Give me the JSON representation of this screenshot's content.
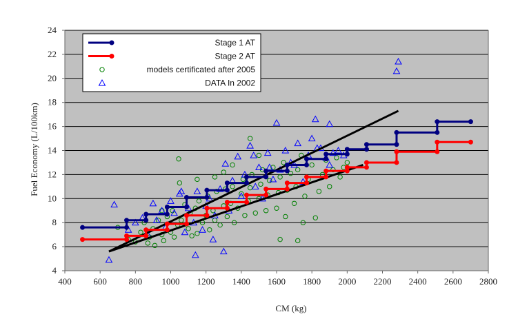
{
  "chart_data": {
    "type": "scatter",
    "xlabel": "CM (kg)",
    "ylabel": "Fuel Economy (L/100km)",
    "xlim": [
      400,
      2800
    ],
    "ylim": [
      4,
      24
    ],
    "x_ticks": [
      "400",
      "600",
      "800",
      "1000",
      "1200",
      "1400",
      "1600",
      "1800",
      "2000",
      "2200",
      "2400",
      "2600",
      "2800"
    ],
    "y_ticks": [
      "4",
      "6",
      "8",
      "10",
      "12",
      "14",
      "16",
      "18",
      "20",
      "22",
      "24"
    ],
    "grid": "horizontal",
    "background": "#c0c0c0",
    "legend_position": "top-left",
    "legend": [
      {
        "label": "Stage 1 AT",
        "color": "#000080",
        "marker": "line-dot"
      },
      {
        "label": "Stage 2 AT",
        "color": "#ff0000",
        "marker": "line-dot"
      },
      {
        "label": "models certificated after 2005",
        "color": "#008000",
        "marker": "circle"
      },
      {
        "label": "DATA In 2002",
        "color": "#0000ff",
        "marker": "triangle"
      }
    ],
    "series": [
      {
        "name": "Stage 1 AT",
        "type": "step",
        "color": "#000080",
        "x": [
          500,
          750,
          750,
          860,
          860,
          980,
          980,
          1090,
          1090,
          1205,
          1205,
          1320,
          1320,
          1430,
          1430,
          1540,
          1540,
          1660,
          1660,
          1770,
          1770,
          1880,
          1880,
          2000,
          2000,
          2110,
          2110,
          2280,
          2280,
          2510,
          2510,
          2700
        ],
        "y": [
          7.6,
          7.6,
          8.2,
          8.2,
          8.7,
          8.7,
          9.3,
          9.3,
          10.1,
          10.1,
          10.7,
          10.7,
          11.3,
          11.3,
          11.8,
          11.8,
          12.3,
          12.3,
          12.8,
          12.8,
          13.3,
          13.3,
          13.7,
          13.7,
          14.1,
          14.1,
          14.5,
          14.5,
          15.5,
          15.5,
          16.4,
          16.4
        ]
      },
      {
        "name": "Stage 2 AT",
        "type": "step",
        "color": "#ff0000",
        "x": [
          500,
          750,
          750,
          860,
          860,
          980,
          980,
          1090,
          1090,
          1205,
          1205,
          1320,
          1320,
          1430,
          1430,
          1540,
          1540,
          1660,
          1660,
          1770,
          1770,
          1880,
          1880,
          2000,
          2000,
          2110,
          2110,
          2280,
          2280,
          2510,
          2510,
          2700
        ],
        "y": [
          6.6,
          6.6,
          6.9,
          6.9,
          7.4,
          7.4,
          7.9,
          7.9,
          8.6,
          8.6,
          9.2,
          9.2,
          9.7,
          9.7,
          10.3,
          10.3,
          10.8,
          10.8,
          11.3,
          11.3,
          11.8,
          11.8,
          12.3,
          12.3,
          12.6,
          12.6,
          13.0,
          13.0,
          13.9,
          13.9,
          14.7,
          14.7
        ]
      },
      {
        "name": "trend upper",
        "type": "line",
        "color": "#000000",
        "x": [
          650,
          2290
        ],
        "y": [
          5.6,
          17.3
        ]
      },
      {
        "name": "trend lower",
        "type": "line",
        "color": "#000000",
        "x": [
          650,
          2090
        ],
        "y": [
          5.6,
          12.8
        ]
      },
      {
        "name": "models certificated after 2005",
        "type": "scatter",
        "marker": "circle",
        "color": "#008000",
        "x": [
          700,
          760,
          800,
          830,
          850,
          870,
          880,
          900,
          910,
          930,
          950,
          960,
          980,
          1000,
          1010,
          1020,
          1040,
          1050,
          1060,
          1080,
          1100,
          1110,
          1120,
          1140,
          1150,
          1160,
          1180,
          1200,
          1210,
          1220,
          1240,
          1250,
          1260,
          1280,
          1300,
          1310,
          1320,
          1340,
          1350,
          1360,
          1380,
          1400,
          1410,
          1420,
          1440,
          1450,
          1460,
          1480,
          1500,
          1510,
          1520,
          1540,
          1550,
          1560,
          1580,
          1600,
          1610,
          1620,
          1640,
          1650,
          1660,
          1680,
          1700,
          1710,
          1720,
          1740,
          1750,
          1760,
          1780,
          1800,
          1820,
          1840,
          1860,
          1880,
          1900,
          1920,
          1940,
          1960,
          1980,
          2000,
          1045,
          1450,
          1620,
          1720,
          1300,
          1500,
          1150,
          950,
          1350,
          1250
        ],
        "y": [
          7.6,
          6.6,
          6.4,
          7.2,
          8.0,
          6.3,
          6.8,
          7.5,
          6.1,
          8.2,
          7.0,
          6.5,
          8.5,
          7.2,
          9.0,
          6.8,
          7.8,
          11.3,
          8.2,
          9.5,
          7.5,
          8.8,
          6.9,
          9.2,
          7.1,
          9.8,
          8.0,
          8.6,
          10.2,
          7.4,
          9.0,
          8.2,
          10.6,
          7.8,
          9.4,
          10.8,
          8.5,
          9.6,
          11.0,
          8.0,
          9.2,
          10.4,
          11.6,
          8.6,
          9.8,
          10.9,
          12.0,
          8.8,
          10.0,
          11.2,
          12.4,
          9.0,
          10.3,
          11.5,
          12.6,
          9.2,
          10.5,
          11.8,
          13.0,
          8.5,
          10.7,
          12.1,
          9.6,
          11.0,
          12.4,
          13.6,
          8.0,
          10.2,
          11.6,
          12.8,
          8.4,
          10.6,
          12.0,
          13.2,
          11.0,
          12.4,
          13.4,
          11.8,
          12.6,
          13.0,
          13.3,
          15.0,
          6.6,
          6.5,
          12.2,
          13.6,
          11.6,
          9.0,
          12.8,
          11.8
        ]
      },
      {
        "name": "DATA In 2002",
        "type": "scatter",
        "marker": "triangle",
        "color": "#0000ff",
        "x": [
          650,
          680,
          760,
          800,
          840,
          870,
          900,
          920,
          950,
          970,
          1000,
          1020,
          1050,
          1080,
          1100,
          1130,
          1150,
          1180,
          1200,
          1220,
          1250,
          1280,
          1310,
          1330,
          1350,
          1380,
          1400,
          1420,
          1450,
          1480,
          1500,
          1520,
          1550,
          1580,
          1600,
          1620,
          1650,
          1680,
          1700,
          1720,
          1750,
          1780,
          1800,
          1820,
          1850,
          1880,
          1900,
          1920,
          1950,
          1980,
          2280,
          2290,
          1060,
          1140,
          1300,
          1240,
          1560,
          1470,
          1900,
          1830
        ],
        "y": [
          4.9,
          9.5,
          7.4,
          8.0,
          8.4,
          7.0,
          9.6,
          8.2,
          9.0,
          7.6,
          9.8,
          8.8,
          10.4,
          7.2,
          9.2,
          8.0,
          10.6,
          7.4,
          9.4,
          10.0,
          8.6,
          10.8,
          12.9,
          9.0,
          11.5,
          13.5,
          10.2,
          12.0,
          14.4,
          11.0,
          12.6,
          10.0,
          13.8,
          11.6,
          16.3,
          12.4,
          14.0,
          13.0,
          12.8,
          14.6,
          11.4,
          13.6,
          15.0,
          16.6,
          14.2,
          13.4,
          16.2,
          13.8,
          14.0,
          13.6,
          20.6,
          21.4,
          10.6,
          5.3,
          5.6,
          6.6,
          12.6,
          13.6,
          12.8,
          14.2
        ]
      }
    ]
  }
}
